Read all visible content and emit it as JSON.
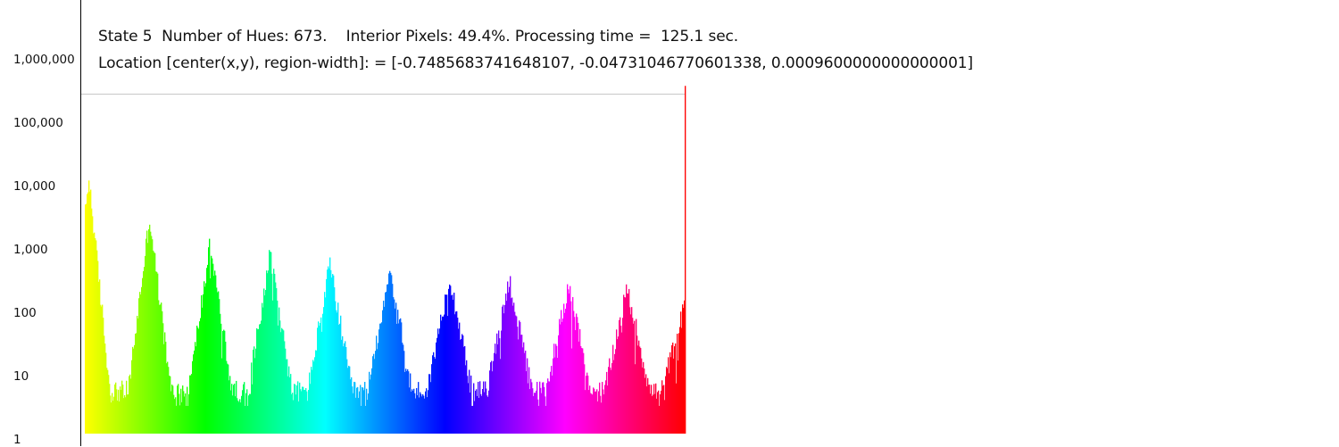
{
  "info": {
    "line1": "State 5  Number of Hues: 673.    Interior Pixels: 49.4%. Processing time =  125.1 sec.",
    "line2": "Location [center(x,y), region-width]: = [-0.7485683741648107, -0.04731046770601338, 0.0009600000000000001]"
  },
  "chart_data": {
    "type": "bar",
    "yscale": "log",
    "ylim": [
      1,
      1000000
    ],
    "yticks": [
      "1,000,000",
      "100,000",
      "10,000",
      "1,000",
      "100",
      "10",
      "1"
    ],
    "grid": false,
    "legend": "none",
    "bin_count": 673,
    "reference_line": 300000,
    "last_bin_value": 400000,
    "floor_value": 6,
    "peaks": [
      {
        "center": 4,
        "value": 14000,
        "color": "#ffff00"
      },
      {
        "center": 72,
        "value": 3300,
        "color": "#80ff00"
      },
      {
        "center": 140,
        "value": 1300,
        "color": "#00ff00"
      },
      {
        "center": 207,
        "value": 900,
        "color": "#00ff80"
      },
      {
        "center": 274,
        "value": 600,
        "color": "#00ffff"
      },
      {
        "center": 341,
        "value": 500,
        "color": "#0080ff"
      },
      {
        "center": 408,
        "value": 400,
        "color": "#0000ff"
      },
      {
        "center": 475,
        "value": 350,
        "color": "#8000ff"
      },
      {
        "center": 541,
        "value": 280,
        "color": "#ff00ff"
      },
      {
        "center": 607,
        "value": 250,
        "color": "#ff0080"
      },
      {
        "center": 672,
        "value": 140,
        "color": "#ff0000"
      }
    ]
  }
}
